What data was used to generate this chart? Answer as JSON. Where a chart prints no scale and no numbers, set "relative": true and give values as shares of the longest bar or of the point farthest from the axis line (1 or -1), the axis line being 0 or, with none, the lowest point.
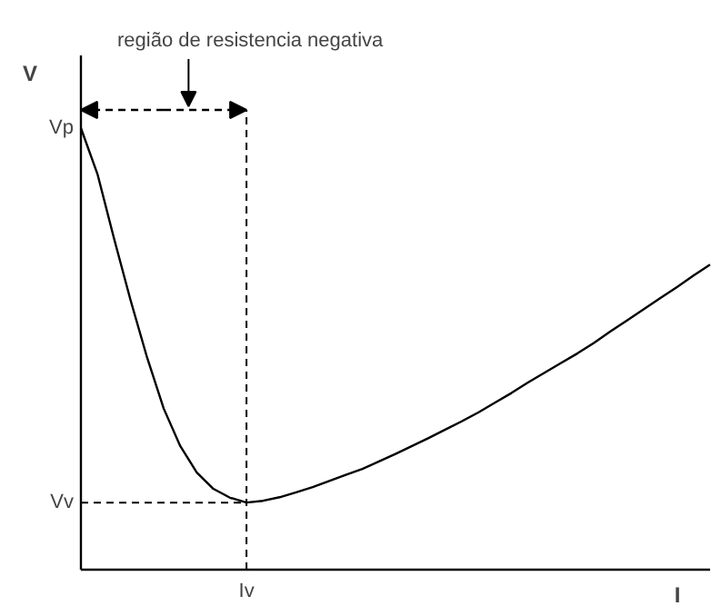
{
  "chart_data": {
    "type": "line",
    "relative": true,
    "xlabel": "I",
    "ylabel": "V",
    "color": "#000000",
    "categories": [
      null,
      null,
      null,
      null,
      null,
      null,
      null,
      null,
      null,
      null,
      null,
      null,
      null,
      null,
      null,
      null,
      null,
      null,
      null,
      null,
      null,
      null,
      null,
      null,
      null,
      null,
      null,
      null,
      null,
      null,
      null,
      null,
      null,
      null,
      null,
      null,
      null,
      null,
      null
    ],
    "values": [
      1.0,
      0.896,
      0.75,
      0.61,
      0.48,
      0.365,
      0.28,
      0.22,
      0.183,
      0.163,
      0.152,
      0.156,
      0.164,
      0.175,
      0.187,
      0.201,
      0.215,
      0.228,
      0.245,
      0.262,
      0.28,
      0.298,
      0.317,
      0.336,
      0.356,
      0.378,
      0.4,
      0.424,
      0.446,
      0.468,
      0.49,
      0.514,
      0.54,
      0.565,
      0.59,
      0.615,
      0.64,
      0.666,
      0.691
    ],
    "annotations": [
      "região de resistencia negativa",
      "Vp",
      "Vv",
      "Iv"
    ],
    "grid": false,
    "legend": false,
    "marker": "none",
    "line_style": "solid"
  }
}
